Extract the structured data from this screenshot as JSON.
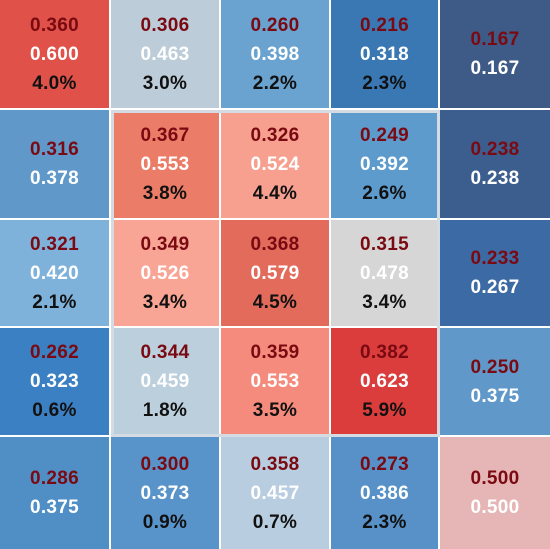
{
  "chart_data": {
    "type": "heatmap",
    "rows": 5,
    "cols": 5,
    "cells": [
      [
        {
          "values": [
            "0.360",
            "0.600",
            "4.0%"
          ],
          "color": "#e05249"
        },
        {
          "values": [
            "0.306",
            "0.463",
            "3.0%"
          ],
          "color": "#bccdd9"
        },
        {
          "values": [
            "0.260",
            "0.398",
            "2.2%"
          ],
          "color": "#6aa3cf"
        },
        {
          "values": [
            "0.216",
            "0.318",
            "2.3%"
          ],
          "color": "#3a78b4"
        },
        {
          "values": [
            "0.167",
            "0.167"
          ],
          "color": "#3e5a86"
        }
      ],
      [
        {
          "values": [
            "0.316",
            "0.378"
          ],
          "color": "#5f98c9"
        },
        {
          "values": [
            "0.367",
            "0.553",
            "3.8%"
          ],
          "color": "#eb7c68"
        },
        {
          "values": [
            "0.326",
            "0.524",
            "4.4%"
          ],
          "color": "#f7a08f"
        },
        {
          "values": [
            "0.249",
            "0.392",
            "2.6%"
          ],
          "color": "#5e9bcd"
        },
        {
          "values": [
            "0.238",
            "0.238"
          ],
          "color": "#3c5e8e"
        }
      ],
      [
        {
          "values": [
            "0.321",
            "0.420",
            "2.1%"
          ],
          "color": "#7fb2da"
        },
        {
          "values": [
            "0.349",
            "0.526",
            "3.4%"
          ],
          "color": "#f8a595"
        },
        {
          "values": [
            "0.368",
            "0.579",
            "4.5%"
          ],
          "color": "#e26b5b"
        },
        {
          "values": [
            "0.315",
            "0.478",
            "3.4%"
          ],
          "color": "#d6d6d6"
        },
        {
          "values": [
            "0.233",
            "0.267"
          ],
          "color": "#3c6aa4"
        }
      ],
      [
        {
          "values": [
            "0.262",
            "0.323",
            "0.6%"
          ],
          "color": "#3b80c2"
        },
        {
          "values": [
            "0.344",
            "0.459",
            "1.8%"
          ],
          "color": "#bccfdd"
        },
        {
          "values": [
            "0.359",
            "0.553",
            "3.5%"
          ],
          "color": "#f58b7c"
        },
        {
          "values": [
            "0.382",
            "0.623",
            "5.9%"
          ],
          "color": "#db3c3c"
        },
        {
          "values": [
            "0.250",
            "0.375"
          ],
          "color": "#5f98c9"
        }
      ],
      [
        {
          "values": [
            "0.286",
            "0.375"
          ],
          "color": "#4f8fc5"
        },
        {
          "values": [
            "0.300",
            "0.373",
            "0.9%"
          ],
          "color": "#5893c9"
        },
        {
          "values": [
            "0.358",
            "0.457",
            "0.7%"
          ],
          "color": "#b8cde0"
        },
        {
          "values": [
            "0.273",
            "0.386",
            "2.3%"
          ],
          "color": "#5791c7"
        },
        {
          "values": [
            "0.500",
            "0.500"
          ],
          "color": "#e6b6b6"
        }
      ]
    ],
    "highlight": {
      "row_start": 1,
      "row_end": 3,
      "col_start": 1,
      "col_end": 3,
      "color": "#d5dbe2"
    }
  }
}
